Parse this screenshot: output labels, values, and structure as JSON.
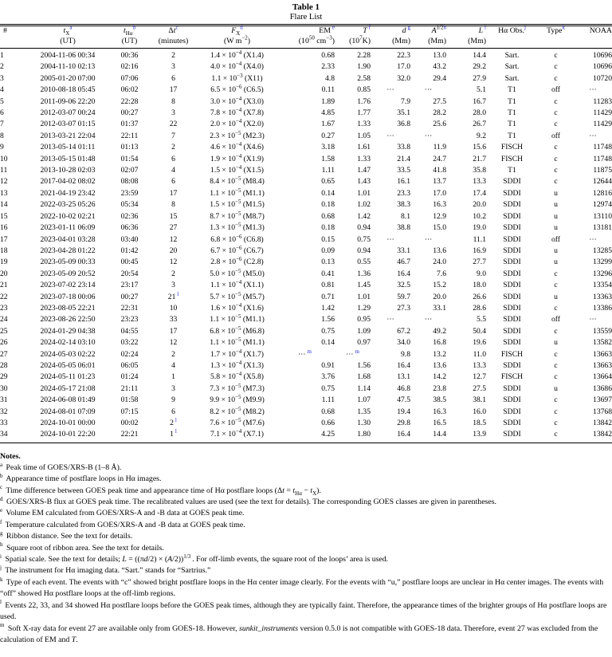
{
  "caption": {
    "number": "Table 1",
    "title": "Flare List"
  },
  "colors": {
    "superscript_note_link": "#2b2bd0",
    "text": "#000000",
    "background": "#ffffff"
  },
  "table": {
    "columns": [
      {
        "key": "num",
        "label_html": "#",
        "unit_html": ""
      },
      {
        "key": "t-x",
        "label_html": "<i>t</i><sub>X</sub><sup class=\"nb\">a</sup>",
        "unit_html": "(UT)"
      },
      {
        "key": "t-ha",
        "label_html": "<i>t</i><sub>Hα</sub><sup class=\"nb\">b</sup>",
        "unit_html": "(UT)"
      },
      {
        "key": "delta-t",
        "label_html": "Δ<i>t</i><sup class=\"nb\">c</sup>",
        "unit_html": "(minutes)"
      },
      {
        "key": "f-x",
        "label_html": "<i>F</i><sub>X</sub><sup class=\"nb\">d</sup>",
        "unit_html": "(W m<sup>−2</sup>)"
      },
      {
        "key": "em",
        "label_html": "EM <sup class=\"nb\">e</sup>",
        "unit_html": "(10<sup>50</sup> cm<sup>−3</sup>)"
      },
      {
        "key": "temp",
        "label_html": "<i>T</i> <sup class=\"nb\">f</sup>",
        "unit_html": "(10<sup>7</sup>K)"
      },
      {
        "key": "d",
        "label_html": "<i>d</i> <sup class=\"nb\">g</sup>",
        "unit_html": "(Mm)"
      },
      {
        "key": "a-sqrt",
        "label_html": "<i>A</i><sup>1/2<span class=\"nb\">h</span></sup>",
        "unit_html": "(Mm)"
      },
      {
        "key": "l",
        "label_html": "<i>L</i> <sup class=\"nb\">i</sup>",
        "unit_html": "(Mm)"
      },
      {
        "key": "ha-obs",
        "label_html": "Hα Obs.<sup class=\"nb\">j</sup>",
        "unit_html": ""
      },
      {
        "key": "type",
        "label_html": "Type<sup class=\"nb\">k</sup>",
        "unit_html": ""
      },
      {
        "key": "noaa",
        "label_html": "NOAA",
        "unit_html": ""
      }
    ],
    "row_fields": [
      "num",
      "t_x",
      "t_ha",
      "dt",
      "dt_sup",
      "fx_mant",
      "fx_exp",
      "fx_class",
      "em",
      "em_sup",
      "temp",
      "temp_sup",
      "d",
      "a_sqrt",
      "l",
      "ha_obs",
      "type",
      "noaa"
    ],
    "rows": [
      [
        "1",
        "2004-11-06 00:34",
        "00:36",
        "2",
        "",
        "1.4",
        "−4",
        "X1.4",
        "0.68",
        "",
        "2.28",
        "",
        "22.3",
        "13.0",
        "14.4",
        "Sart.",
        "c",
        "10696"
      ],
      [
        "2",
        "2004-11-10 02:13",
        "02:16",
        "3",
        "",
        "4.0",
        "−4",
        "X4.0",
        "2.33",
        "",
        "1.90",
        "",
        "17.0",
        "43.2",
        "29.2",
        "Sart.",
        "c",
        "10696"
      ],
      [
        "3",
        "2005-01-20 07:00",
        "07:06",
        "6",
        "",
        "1.1",
        "−3",
        "X11",
        "4.8",
        "",
        "2.58",
        "",
        "32.0",
        "29.4",
        "27.9",
        "Sart.",
        "c",
        "10720"
      ],
      [
        "4",
        "2010-08-18 05:45",
        "06:02",
        "17",
        "",
        "6.5",
        "−6",
        "C6.5",
        "0.11",
        "",
        "0.85",
        "",
        "⋯",
        "⋯",
        "5.1",
        "T1",
        "off",
        "⋯"
      ],
      [
        "5",
        "2011-09-06 22:20",
        "22:28",
        "8",
        "",
        "3.0",
        "−4",
        "X3.0",
        "1.89",
        "",
        "1.76",
        "",
        "7.9",
        "27.5",
        "16.7",
        "T1",
        "c",
        "11283"
      ],
      [
        "6",
        "2012-03-07 00:24",
        "00:27",
        "3",
        "",
        "7.8",
        "−4",
        "X7.8",
        "4.85",
        "",
        "1.77",
        "",
        "35.1",
        "28.2",
        "28.0",
        "T1",
        "c",
        "11429"
      ],
      [
        "7",
        "2012-03-07 01:15",
        "01:37",
        "22",
        "",
        "2.0",
        "−4",
        "X2.0",
        "1.67",
        "",
        "1.33",
        "",
        "36.8",
        "25.6",
        "26.7",
        "T1",
        "c",
        "11429"
      ],
      [
        "8",
        "2013-03-21 22:04",
        "22:11",
        "7",
        "",
        "2.3",
        "−5",
        "M2.3",
        "0.27",
        "",
        "1.05",
        "",
        "⋯",
        "⋯",
        "9.2",
        "T1",
        "off",
        "⋯"
      ],
      [
        "9",
        "2013-05-14 01:11",
        "01:13",
        "2",
        "",
        "4.6",
        "−4",
        "X4.6",
        "3.18",
        "",
        "1.61",
        "",
        "33.8",
        "11.9",
        "15.6",
        "FISCH",
        "c",
        "11748"
      ],
      [
        "10",
        "2013-05-15 01:48",
        "01:54",
        "6",
        "",
        "1.9",
        "−4",
        "X1.9",
        "1.58",
        "",
        "1.33",
        "",
        "21.4",
        "24.7",
        "21.7",
        "FISCH",
        "c",
        "11748"
      ],
      [
        "11",
        "2013-10-28 02:03",
        "02:07",
        "4",
        "",
        "1.5",
        "−4",
        "X1.5",
        "1.11",
        "",
        "1.47",
        "",
        "33.5",
        "41.8",
        "35.8",
        "T1",
        "c",
        "11875"
      ],
      [
        "12",
        "2017-04-02 08:02",
        "08:08",
        "6",
        "",
        "8.4",
        "−5",
        "M8.4",
        "0.65",
        "",
        "1.43",
        "",
        "16.1",
        "13.7",
        "13.3",
        "SDDI",
        "c",
        "12644"
      ],
      [
        "13",
        "2021-04-19 23:42",
        "23:59",
        "17",
        "",
        "1.1",
        "−5",
        "M1.1",
        "0.14",
        "",
        "1.01",
        "",
        "23.3",
        "17.0",
        "17.4",
        "SDDI",
        "u",
        "12816"
      ],
      [
        "14",
        "2022-03-25 05:26",
        "05:34",
        "8",
        "",
        "1.5",
        "−5",
        "M1.5",
        "0.18",
        "",
        "1.02",
        "",
        "38.3",
        "16.3",
        "20.0",
        "SDDI",
        "u",
        "12974"
      ],
      [
        "15",
        "2022-10-02 02:21",
        "02:36",
        "15",
        "",
        "8.7",
        "−5",
        "M8.7",
        "0.68",
        "",
        "1.42",
        "",
        "8.1",
        "12.9",
        "10.2",
        "SDDI",
        "u",
        "13110"
      ],
      [
        "16",
        "2023-01-11 06:09",
        "06:36",
        "27",
        "",
        "1.3",
        "−5",
        "M1.3",
        "0.18",
        "",
        "0.94",
        "",
        "38.8",
        "15.0",
        "19.0",
        "SDDI",
        "u",
        "13181"
      ],
      [
        "17",
        "2023-04-01 03:28",
        "03:40",
        "12",
        "",
        "6.8",
        "−6",
        "C6.8",
        "0.15",
        "",
        "0.75",
        "",
        "⋯",
        "⋯",
        "11.1",
        "SDDI",
        "off",
        "⋯"
      ],
      [
        "18",
        "2023-04-28 01:22",
        "01:42",
        "20",
        "",
        "6.7",
        "−6",
        "C6.7",
        "0.09",
        "",
        "0.94",
        "",
        "33.1",
        "13.6",
        "16.9",
        "SDDI",
        "u",
        "13285"
      ],
      [
        "19",
        "2023-05-09 00:33",
        "00:45",
        "12",
        "",
        "2.8",
        "−6",
        "C2.8",
        "0.13",
        "",
        "0.55",
        "",
        "46.7",
        "24.0",
        "27.7",
        "SDDI",
        "u",
        "13299"
      ],
      [
        "20",
        "2023-05-09 20:52",
        "20:54",
        "2",
        "",
        "5.0",
        "−5",
        "M5.0",
        "0.41",
        "",
        "1.36",
        "",
        "16.4",
        "7.6",
        "9.0",
        "SDDI",
        "c",
        "13296"
      ],
      [
        "21",
        "2023-07-02 23:14",
        "23:17",
        "3",
        "",
        "1.1",
        "−4",
        "X1.1",
        "0.81",
        "",
        "1.45",
        "",
        "32.5",
        "15.2",
        "18.0",
        "SDDI",
        "c",
        "13354"
      ],
      [
        "22",
        "2023-07-18 00:06",
        "00:27",
        "21",
        "l",
        "5.7",
        "−5",
        "M5.7",
        "0.71",
        "",
        "1.01",
        "",
        "59.7",
        "20.0",
        "26.6",
        "SDDI",
        "u",
        "13363"
      ],
      [
        "23",
        "2023-08-05 22:21",
        "22:31",
        "10",
        "",
        "1.6",
        "−4",
        "X1.6",
        "1.42",
        "",
        "1.29",
        "",
        "27.3",
        "33.1",
        "28.6",
        "SDDI",
        "c",
        "13386"
      ],
      [
        "24",
        "2023-08-26 22:50",
        "23:23",
        "33",
        "",
        "1.1",
        "−5",
        "M1.1",
        "1.56",
        "",
        "0.95",
        "",
        "⋯",
        "⋯",
        "5.5",
        "SDDI",
        "off",
        "⋯"
      ],
      [
        "25",
        "2024-01-29 04:38",
        "04:55",
        "17",
        "",
        "6.8",
        "−5",
        "M6.8",
        "0.75",
        "",
        "1.09",
        "",
        "67.2",
        "49.2",
        "50.4",
        "SDDI",
        "c",
        "13559"
      ],
      [
        "26",
        "2024-02-14 03:10",
        "03:22",
        "12",
        "",
        "1.1",
        "−5",
        "M1.1",
        "0.14",
        "",
        "0.97",
        "",
        "34.0",
        "16.8",
        "19.6",
        "SDDI",
        "u",
        "13582"
      ],
      [
        "27",
        "2024-05-03 02:22",
        "02:24",
        "2",
        "",
        "1.7",
        "−4",
        "X1.7",
        "⋯",
        "m",
        "⋯",
        "m",
        "9.8",
        "13.2",
        "11.0",
        "FISCH",
        "c",
        "13663"
      ],
      [
        "28",
        "2024-05-05 06:01",
        "06:05",
        "4",
        "",
        "1.3",
        "−4",
        "X1.3",
        "0.91",
        "",
        "1.56",
        "",
        "16.4",
        "13.6",
        "13.3",
        "SDDI",
        "c",
        "13663"
      ],
      [
        "29",
        "2024-05-11 01:23",
        "01:24",
        "1",
        "",
        "5.8",
        "−4",
        "X5.8",
        "3.76",
        "",
        "1.68",
        "",
        "13.1",
        "14.2",
        "12.7",
        "FISCH",
        "c",
        "13664"
      ],
      [
        "30",
        "2024-05-17 21:08",
        "21:11",
        "3",
        "",
        "7.3",
        "−5",
        "M7.3",
        "0.75",
        "",
        "1.14",
        "",
        "46.8",
        "23.8",
        "27.5",
        "SDDI",
        "u",
        "13686"
      ],
      [
        "31",
        "2024-06-08 01:49",
        "01:58",
        "9",
        "",
        "9.9",
        "−5",
        "M9.9",
        "1.11",
        "",
        "1.07",
        "",
        "47.5",
        "38.5",
        "38.1",
        "SDDI",
        "c",
        "13697"
      ],
      [
        "32",
        "2024-08-01 07:09",
        "07:15",
        "6",
        "",
        "8.2",
        "−5",
        "M8.2",
        "0.68",
        "",
        "1.35",
        "",
        "19.4",
        "16.3",
        "16.0",
        "SDDI",
        "c",
        "13768"
      ],
      [
        "33",
        "2024-10-01 00:00",
        "00:02",
        "2",
        "l",
        "7.6",
        "−5",
        "M7.6",
        "0.66",
        "",
        "1.30",
        "",
        "29.8",
        "16.5",
        "18.5",
        "SDDI",
        "c",
        "13842"
      ],
      [
        "34",
        "2024-10-01 22:20",
        "22:21",
        "1",
        "l",
        "7.1",
        "−4",
        "X7.1",
        "4.25",
        "",
        "1.80",
        "",
        "16.4",
        "14.4",
        "13.9",
        "SDDI",
        "c",
        "13842"
      ]
    ]
  },
  "notes": {
    "heading": "Notes.",
    "items": [
      {
        "letter": "a",
        "html": "Peak time of GOES/XRS-B (1–8 Å)."
      },
      {
        "letter": "b",
        "html": "Appearance time of postflare loops in Hα images."
      },
      {
        "letter": "c",
        "html": "Time difference between GOES peak time and appearance time of Hα postflare loops (Δ<i>t</i> = <i>t</i><sub>Hα</sub> − <i>t</i><sub>X</sub>)."
      },
      {
        "letter": "d",
        "html": "GOES/XRS-B flux at GOES peak time. The recalibrated values are used (see the text for details). The corresponding GOES classes are given in parentheses."
      },
      {
        "letter": "e",
        "html": "Volume EM calculated from GOES/XRS-A and -B data at GOES peak time."
      },
      {
        "letter": "f",
        "html": "Temperature calculated from GOES/XRS-A and -B data at GOES peak time."
      },
      {
        "letter": "g",
        "html": "Ribbon distance. See the text for details."
      },
      {
        "letter": "h",
        "html": "Square root of ribbon area. See the text for details."
      },
      {
        "letter": "i",
        "html": "Spatial scale. See the text for details; <i>L</i> = ((π<i>d</i>/2) × (<i>A</i>/2))<sup>1/3</sup>. For off-limb events, the square root of the loops’ area is used."
      },
      {
        "letter": "j",
        "html": "The instrument for Hα imaging data. “Sart.” stands for “Sartrius.”"
      },
      {
        "letter": "k",
        "html": "Type of each event. The events with “c” showed bright postflare loops in the Hα center image clearly. For the events with “u,” postflare loops are unclear in Hα center images. The events with “off” showed Hα postflare loops at the off-limb regions."
      },
      {
        "letter": "l",
        "html": "Events 22, 33, and 34 showed Hα postflare loops before the GOES peak times, although they are typically faint. Therefore, the appearance times of the brighter groups of Hα postflare loops are used."
      },
      {
        "letter": "m",
        "html": "Soft X-ray data for event 27 are available only from GOES-18. However, <i>sunkit_instruments</i> version 0.5.0 is not compatible with GOES-18 data. Therefore, event 27 was excluded from the calculation of EM and <i>T</i>."
      }
    ]
  }
}
